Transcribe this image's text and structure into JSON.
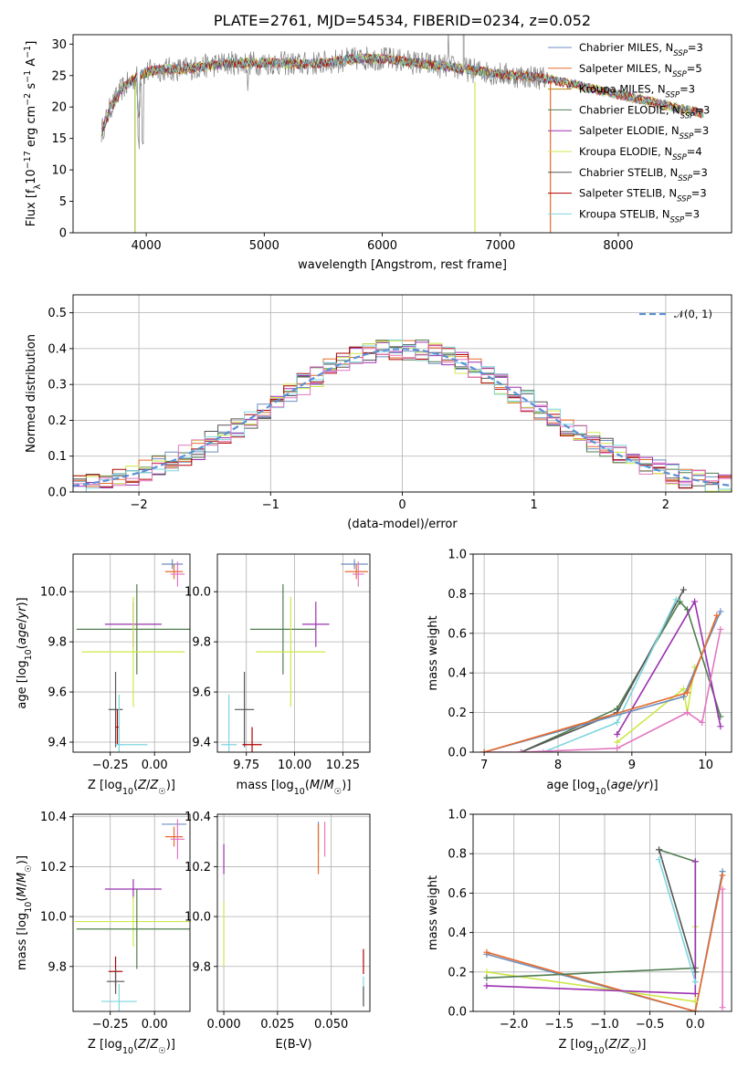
{
  "chart_data": [
    {
      "type": "line",
      "title": "PLATE=2761, MJD=54534, FIBERID=0234, z=0.052",
      "xlabel": "wavelength [Angstrom, rest frame]",
      "ylabel": "Flux [fλ10⁻¹⁷ erg cm⁻² s⁻¹ A⁻¹]",
      "xlim": [
        3380,
        8960
      ],
      "ylim": [
        0,
        31.5
      ],
      "x_ticks": [
        4000,
        5000,
        6000,
        7000,
        8000
      ],
      "y_ticks": [
        0,
        5,
        10,
        15,
        20,
        25,
        30
      ],
      "grid": false,
      "legend_position": "right",
      "spectrum_continuum": [
        [
          3620,
          16
        ],
        [
          3700,
          20
        ],
        [
          3800,
          23
        ],
        [
          3900,
          24.5
        ],
        [
          4000,
          25.5
        ],
        [
          4100,
          26
        ],
        [
          4300,
          26
        ],
        [
          4500,
          26.5
        ],
        [
          4700,
          27
        ],
        [
          4900,
          27
        ],
        [
          5100,
          27
        ],
        [
          5300,
          26.8
        ],
        [
          5500,
          27
        ],
        [
          5700,
          27.5
        ],
        [
          5900,
          27.8
        ],
        [
          6100,
          27.5
        ],
        [
          6300,
          27
        ],
        [
          6500,
          26.5
        ],
        [
          6700,
          26
        ],
        [
          6900,
          25.5
        ],
        [
          7100,
          25
        ],
        [
          7300,
          24.8
        ],
        [
          7400,
          24.5
        ]
      ],
      "model_extension_end": 8720,
      "series": [
        {
          "name": "Chabrier MILES, N_SSP=3",
          "color": "#6d8fbf"
        },
        {
          "name": "Salpeter MILES, N_SSP=5",
          "color": "#e66b2c"
        },
        {
          "name": "Kroupa MILES, N_SSP=3",
          "color": "#b8860b"
        },
        {
          "name": "Chabrier ELODIE, N_SSP=3",
          "color": "#4f7d4f"
        },
        {
          "name": "Salpeter ELODIE, N_SSP=3",
          "color": "#9b30b0"
        },
        {
          "name": "Kroupa ELODIE, N_SSP=4",
          "color": "#cde84a"
        },
        {
          "name": "Chabrier STELIB, N_SSP=3",
          "color": "#555555"
        },
        {
          "name": "Salpeter STELIB, N_SSP=3",
          "color": "#b00000"
        },
        {
          "name": "Kroupa STELIB, N_SSP=3",
          "color": "#7ed6df"
        }
      ]
    },
    {
      "type": "line",
      "xlabel": "(data-model)/error",
      "ylabel": "Normed distribution",
      "xlim": [
        -2.5,
        2.5
      ],
      "ylim": [
        0,
        0.55
      ],
      "x_ticks": [
        -2,
        -1,
        0,
        1,
        2
      ],
      "y_ticks": [
        0.0,
        0.1,
        0.2,
        0.3,
        0.4,
        0.5
      ],
      "grid": true,
      "legend": "𝒩(0, 1)",
      "legend_position": "top-right",
      "hist_bin_width": 0.1,
      "hist_colors": [
        "#6d8fbf",
        "#e66b2c",
        "#4f7d4f",
        "#9b30b0",
        "#cde84a",
        "#555555",
        "#b00000",
        "#7ed6df",
        "#e377c2"
      ]
    },
    {
      "type": "scatter",
      "xlabel": "Z [log10(Z/Z☉)]",
      "ylabel": "age  [log10(age/yr)]",
      "xlim": [
        -0.46,
        0.2
      ],
      "ylim": [
        9.36,
        10.15
      ],
      "x_ticks": [
        -0.25,
        0.0
      ],
      "y_ticks": [
        9.4,
        9.6,
        9.8,
        10.0
      ],
      "grid": true,
      "points": [
        {
          "x": 0.1,
          "y": 10.11,
          "xerr": 0.06,
          "yerr": 0.02,
          "color": "#6d8fbf"
        },
        {
          "x": 0.11,
          "y": 10.08,
          "xerr": 0.05,
          "yerr": 0.03,
          "color": "#e66b2c"
        },
        {
          "x": 0.13,
          "y": 10.07,
          "xerr": 0.04,
          "yerr": 0.05,
          "color": "#e377c2"
        },
        {
          "x": -0.12,
          "y": 9.87,
          "xerr": 0.16,
          "yerr": 0.09,
          "color": "#9b30b0"
        },
        {
          "x": -0.1,
          "y": 9.85,
          "xerr": 0.34,
          "yerr": 0.18,
          "color": "#4f7d4f"
        },
        {
          "x": -0.12,
          "y": 9.76,
          "xerr": 0.29,
          "yerr": 0.22,
          "color": "#cde84a"
        },
        {
          "x": -0.22,
          "y": 9.53,
          "xerr": 0.04,
          "yerr": 0.15,
          "color": "#555555"
        },
        {
          "x": -0.21,
          "y": 9.46,
          "xerr": 0.01,
          "yerr": 0.07,
          "color": "#b00000"
        },
        {
          "x": -0.2,
          "y": 9.39,
          "xerr": 0.02,
          "yerr": 0.2,
          "color": "#7ed6df"
        },
        {
          "x": -0.13,
          "y": 9.39,
          "xerr": 0.09,
          "yerr": 0.0,
          "color": "#7ed6df"
        }
      ]
    },
    {
      "type": "scatter",
      "xlabel": "mass [log10(M/M☉)]",
      "ylabel": "",
      "xlim": [
        9.6,
        10.39
      ],
      "ylim": [
        9.36,
        10.15
      ],
      "x_ticks": [
        9.75,
        10.0,
        10.25
      ],
      "y_ticks": [
        9.4,
        9.6,
        9.8,
        10.0
      ],
      "grid": true,
      "points": [
        {
          "x": 10.31,
          "y": 10.11,
          "xerr": 0.07,
          "yerr": 0.02,
          "color": "#6d8fbf"
        },
        {
          "x": 10.32,
          "y": 10.08,
          "xerr": 0.06,
          "yerr": 0.03,
          "color": "#e66b2c"
        },
        {
          "x": 10.33,
          "y": 10.07,
          "xerr": 0.03,
          "yerr": 0.05,
          "color": "#e377c2"
        },
        {
          "x": 10.11,
          "y": 9.87,
          "xerr": 0.07,
          "yerr": 0.09,
          "color": "#9b30b0"
        },
        {
          "x": 9.94,
          "y": 9.85,
          "xerr": 0.17,
          "yerr": 0.18,
          "color": "#4f7d4f"
        },
        {
          "x": 9.98,
          "y": 9.76,
          "xerr": 0.18,
          "yerr": 0.22,
          "color": "#cde84a"
        },
        {
          "x": 9.74,
          "y": 9.53,
          "xerr": 0.05,
          "yerr": 0.15,
          "color": "#555555"
        },
        {
          "x": 9.78,
          "y": 9.39,
          "xerr": 0.05,
          "yerr": 0.07,
          "color": "#b00000"
        },
        {
          "x": 9.66,
          "y": 9.39,
          "xerr": 0.04,
          "yerr": 0.2,
          "color": "#7ed6df"
        }
      ]
    },
    {
      "type": "line",
      "xlabel": "age  [log10(age/yr)]",
      "ylabel": "mass weight",
      "xlim": [
        6.85,
        10.35
      ],
      "ylim": [
        0,
        1
      ],
      "x_ticks": [
        7,
        8,
        9,
        10
      ],
      "y_ticks": [
        0.0,
        0.2,
        0.4,
        0.6,
        0.8,
        1.0
      ],
      "grid": true,
      "series": [
        {
          "color": "#4f7d4f",
          "points": [
            [
              7.5,
              0.0
            ],
            [
              8.8,
              0.22
            ],
            [
              9.65,
              0.76
            ],
            [
              9.75,
              0.72
            ],
            [
              10.2,
              0.18
            ]
          ]
        },
        {
          "color": "#9b30b0",
          "points": [
            [
              8.8,
              0.09
            ],
            [
              9.85,
              0.76
            ],
            [
              10.2,
              0.13
            ]
          ]
        },
        {
          "color": "#cde84a",
          "points": [
            [
              8.8,
              0.05
            ],
            [
              9.7,
              0.32
            ],
            [
              9.75,
              0.2
            ],
            [
              9.85,
              0.43
            ]
          ]
        },
        {
          "color": "#555555",
          "points": [
            [
              7.5,
              0.0
            ],
            [
              8.8,
              0.2
            ],
            [
              9.7,
              0.82
            ]
          ]
        },
        {
          "color": "#7ed6df",
          "points": [
            [
              7.8,
              0.0
            ],
            [
              8.8,
              0.15
            ],
            [
              9.6,
              0.77
            ]
          ]
        },
        {
          "color": "#e377c2",
          "points": [
            [
              7.0,
              0.0
            ],
            [
              7.5,
              0.0
            ],
            [
              8.8,
              0.02
            ],
            [
              9.75,
              0.2
            ],
            [
              9.95,
              0.15
            ],
            [
              10.2,
              0.62
            ]
          ]
        },
        {
          "color": "#6d8fbf",
          "points": [
            [
              7.0,
              0.0
            ],
            [
              9.7,
              0.28
            ],
            [
              10.2,
              0.71
            ]
          ]
        },
        {
          "color": "#e66b2c",
          "points": [
            [
              7.0,
              0.0
            ],
            [
              9.75,
              0.3
            ],
            [
              10.15,
              0.69
            ]
          ]
        }
      ]
    },
    {
      "type": "scatter",
      "xlabel": "Z [log10(Z/Z☉)]",
      "ylabel": "mass [log10(M/M☉)]",
      "xlim": [
        -0.46,
        0.2
      ],
      "ylim": [
        9.62,
        10.41
      ],
      "x_ticks": [
        -0.25,
        0.0
      ],
      "y_ticks": [
        9.8,
        10.0,
        10.2,
        10.4
      ],
      "grid": true,
      "points": [
        {
          "x": 0.11,
          "y": 10.37,
          "xerr": 0.07,
          "yerr": 0.0,
          "color": "#6d8fbf"
        },
        {
          "x": 0.11,
          "y": 10.32,
          "xerr": 0.05,
          "yerr": 0.04,
          "color": "#e66b2c"
        },
        {
          "x": 0.13,
          "y": 10.31,
          "xerr": 0.04,
          "yerr": 0.08,
          "color": "#e377c2"
        },
        {
          "x": -0.12,
          "y": 10.11,
          "xerr": 0.16,
          "yerr": 0.04,
          "color": "#9b30b0"
        },
        {
          "x": -0.12,
          "y": 9.98,
          "xerr": 0.33,
          "yerr": 0.1,
          "color": "#cde84a"
        },
        {
          "x": -0.1,
          "y": 9.95,
          "xerr": 0.34,
          "yerr": 0.16,
          "color": "#4f7d4f"
        },
        {
          "x": -0.22,
          "y": 9.78,
          "xerr": 0.04,
          "yerr": 0.06,
          "color": "#b00000"
        },
        {
          "x": -0.22,
          "y": 9.74,
          "xerr": 0.05,
          "yerr": 0.05,
          "color": "#555555"
        },
        {
          "x": -0.2,
          "y": 9.66,
          "xerr": 0.1,
          "yerr": 0.07,
          "color": "#7ed6df"
        }
      ]
    },
    {
      "type": "scatter",
      "xlabel": "E(B-V)",
      "ylabel": "",
      "xlim": [
        -0.003,
        0.068
      ],
      "ylim": [
        9.62,
        10.41
      ],
      "x_ticks": [
        0.0,
        0.025,
        0.05
      ],
      "x_tick_labels": [
        "0.000",
        "0.025",
        "0.050"
      ],
      "y_ticks": [
        9.8,
        10.0,
        10.2,
        10.4
      ],
      "grid": true,
      "points": [
        {
          "x": 0.0,
          "y": 10.23,
          "xerr": 0.0,
          "yerr": 0.06,
          "color": "#9b30b0"
        },
        {
          "x": 0.0,
          "y": 9.93,
          "xerr": 0.0,
          "yerr": 0.13,
          "color": "#cde84a"
        },
        {
          "x": 0.044,
          "y": 10.32,
          "xerr": 0.0,
          "yerr": 0.06,
          "color": "#6d8fbf"
        },
        {
          "x": 0.044,
          "y": 10.27,
          "xerr": 0.0,
          "yerr": 0.1,
          "color": "#e66b2c"
        },
        {
          "x": 0.047,
          "y": 10.31,
          "xerr": 0.0,
          "yerr": 0.07,
          "color": "#e377c2"
        },
        {
          "x": 0.065,
          "y": 9.82,
          "xerr": 0.0,
          "yerr": 0.05,
          "color": "#b00000"
        },
        {
          "x": 0.065,
          "y": 9.7,
          "xerr": 0.0,
          "yerr": 0.06,
          "color": "#7ed6df"
        },
        {
          "x": 0.065,
          "y": 9.68,
          "xerr": 0.0,
          "yerr": 0.04,
          "color": "#555555"
        }
      ]
    },
    {
      "type": "line",
      "xlabel": "Z [log10(Z/Z☉)]",
      "ylabel": "mass weight",
      "xlim": [
        -2.45,
        0.4
      ],
      "ylim": [
        0,
        1
      ],
      "x_ticks": [
        -2.0,
        -1.5,
        -1.0,
        -0.5,
        0.0
      ],
      "y_ticks": [
        0.0,
        0.2,
        0.4,
        0.6,
        0.8,
        1.0
      ],
      "grid": true,
      "series": [
        {
          "color": "#6d8fbf",
          "points": [
            [
              -2.3,
              0.29
            ],
            [
              0.0,
              0.0
            ],
            [
              0.3,
              0.71
            ]
          ]
        },
        {
          "color": "#e66b2c",
          "points": [
            [
              -2.3,
              0.3
            ],
            [
              0.0,
              0.0
            ],
            [
              0.3,
              0.69
            ]
          ]
        },
        {
          "color": "#cde84a",
          "points": [
            [
              -2.3,
              0.2
            ],
            [
              0.0,
              0.05
            ],
            [
              0.0,
              0.43
            ]
          ]
        },
        {
          "color": "#4f7d4f",
          "points": [
            [
              -2.3,
              0.17
            ],
            [
              0.0,
              0.22
            ],
            [
              0.0,
              0.76
            ],
            [
              -0.4,
              0.82
            ]
          ]
        },
        {
          "color": "#9b30b0",
          "points": [
            [
              -2.3,
              0.13
            ],
            [
              0.0,
              0.09
            ],
            [
              0.0,
              0.76
            ]
          ]
        },
        {
          "color": "#555555",
          "points": [
            [
              0.0,
              0.2
            ],
            [
              -0.4,
              0.82
            ]
          ]
        },
        {
          "color": "#7ed6df",
          "points": [
            [
              0.0,
              0.15
            ],
            [
              -0.4,
              0.77
            ]
          ]
        },
        {
          "color": "#e377c2",
          "points": [
            [
              0.3,
              0.02
            ],
            [
              0.3,
              0.62
            ]
          ]
        }
      ]
    }
  ],
  "label_parts": {
    "log10": "log",
    "sub10": "10",
    "sun": "☉"
  }
}
